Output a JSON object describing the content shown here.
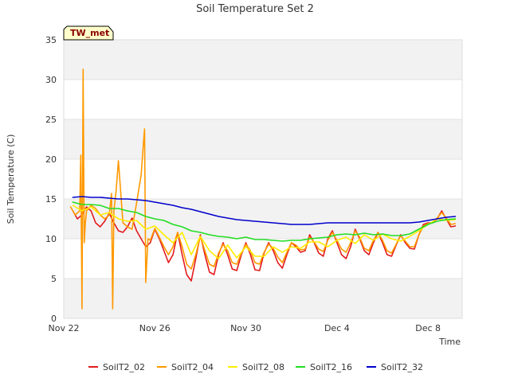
{
  "chart_data": {
    "type": "line",
    "title": "Soil Temperature Set 2",
    "xlabel": "Time",
    "ylabel": "Soil Temperature (C)",
    "station_badge": "TW_met",
    "ylim": [
      0,
      35
    ],
    "yticks": [
      0,
      5,
      10,
      15,
      20,
      25,
      30,
      35
    ],
    "xlim": [
      0,
      17.5
    ],
    "xticks": [
      {
        "value": 0,
        "label": "Nov 22"
      },
      {
        "value": 4,
        "label": "Nov 26"
      },
      {
        "value": 8,
        "label": "Nov 30"
      },
      {
        "value": 12,
        "label": "Dec 4"
      },
      {
        "value": 16,
        "label": "Dec 8"
      }
    ],
    "grid": true,
    "legend_position": "bottom",
    "series": [
      {
        "name": "SoilT2_02",
        "color": "#e31a1c",
        "x": [
          0.4,
          0.6,
          0.8,
          1.0,
          1.2,
          1.4,
          1.6,
          1.8,
          2.0,
          2.2,
          2.4,
          2.6,
          2.8,
          3.0,
          3.2,
          3.4,
          3.6,
          3.8,
          4.0,
          4.2,
          4.4,
          4.6,
          4.8,
          5.0,
          5.2,
          5.4,
          5.6,
          5.8,
          6.0,
          6.2,
          6.4,
          6.6,
          6.8,
          7.0,
          7.2,
          7.4,
          7.6,
          7.8,
          8.0,
          8.2,
          8.4,
          8.6,
          8.8,
          9.0,
          9.2,
          9.4,
          9.6,
          9.8,
          10.0,
          10.2,
          10.4,
          10.6,
          10.8,
          11.0,
          11.2,
          11.4,
          11.6,
          11.8,
          12.0,
          12.2,
          12.4,
          12.6,
          12.8,
          13.0,
          13.2,
          13.4,
          13.6,
          13.8,
          14.0,
          14.2,
          14.4,
          14.6,
          14.8,
          15.0,
          15.2,
          15.4,
          15.6,
          15.8,
          16.0,
          16.2,
          16.4,
          16.6,
          16.8,
          17.0,
          17.2
        ],
        "y": [
          13.5,
          12.5,
          13.0,
          14.0,
          13.5,
          12.0,
          11.5,
          12.2,
          13.2,
          12.0,
          11.0,
          10.8,
          11.5,
          12.6,
          11.0,
          10.0,
          9.0,
          9.5,
          11.2,
          10.0,
          8.5,
          7.0,
          8.0,
          10.8,
          8.0,
          5.5,
          4.7,
          7.5,
          10.5,
          8.0,
          5.8,
          5.5,
          8.0,
          9.5,
          8.0,
          6.2,
          6.0,
          8.0,
          9.5,
          8.0,
          6.1,
          6.0,
          8.2,
          9.5,
          8.5,
          7.0,
          6.3,
          8.0,
          9.5,
          9.0,
          8.3,
          8.5,
          10.5,
          9.5,
          8.2,
          7.8,
          10.0,
          11.0,
          9.5,
          8.0,
          7.5,
          9.0,
          11.2,
          10.0,
          8.5,
          8.0,
          9.5,
          10.8,
          9.5,
          8.0,
          7.8,
          9.2,
          10.5,
          9.5,
          8.8,
          8.7,
          10.5,
          11.8,
          12.0,
          12.0,
          12.5,
          13.5,
          12.5,
          11.5,
          11.6
        ]
      },
      {
        "name": "SoilT2_04",
        "color": "#ff9900",
        "x": [
          0.3,
          0.5,
          0.7,
          0.75,
          0.8,
          0.85,
          0.9,
          0.95,
          1.0,
          1.2,
          1.4,
          1.6,
          1.8,
          2.0,
          2.1,
          2.15,
          2.2,
          2.3,
          2.4,
          2.6,
          2.8,
          3.0,
          3.2,
          3.4,
          3.5,
          3.55,
          3.6,
          3.7,
          3.8,
          4.0,
          4.2,
          4.4,
          4.6,
          4.8,
          5.0,
          5.2,
          5.4,
          5.6,
          5.8,
          6.0,
          6.2,
          6.4,
          6.6,
          6.8,
          7.0,
          7.2,
          7.4,
          7.6,
          7.8,
          8.0,
          8.2,
          8.4,
          8.6,
          8.8,
          9.0,
          9.2,
          9.4,
          9.6,
          9.8,
          10.0,
          10.2,
          10.4,
          10.6,
          10.8,
          11.0,
          11.2,
          11.4,
          11.6,
          11.8,
          12.0,
          12.2,
          12.4,
          12.6,
          12.8,
          13.0,
          13.2,
          13.4,
          13.6,
          13.8,
          14.0,
          14.2,
          14.4,
          14.6,
          14.8,
          15.0,
          15.2,
          15.4,
          15.6,
          15.8,
          16.0,
          16.2,
          16.4,
          16.6,
          16.8,
          17.0,
          17.2
        ],
        "y": [
          14.0,
          13.0,
          13.5,
          20.5,
          1.2,
          31.3,
          9.5,
          12.0,
          13.5,
          14.2,
          13.8,
          13.0,
          12.5,
          13.0,
          15.7,
          1.2,
          13.5,
          16.0,
          19.8,
          12.0,
          11.5,
          11.2,
          14.5,
          18.0,
          22.0,
          23.8,
          4.5,
          10.0,
          9.8,
          11.3,
          10.2,
          9.0,
          8.0,
          9.0,
          10.8,
          9.0,
          6.8,
          6.2,
          8.0,
          10.3,
          8.5,
          6.8,
          6.5,
          8.2,
          9.3,
          8.5,
          7.0,
          6.8,
          8.2,
          9.3,
          8.5,
          7.0,
          6.8,
          8.3,
          9.3,
          8.8,
          7.7,
          7.0,
          8.3,
          9.5,
          9.2,
          8.6,
          8.7,
          10.2,
          9.6,
          8.7,
          8.4,
          9.8,
          10.8,
          9.8,
          8.7,
          8.3,
          9.5,
          11.0,
          10.2,
          8.8,
          8.5,
          9.8,
          10.8,
          9.8,
          8.5,
          8.2,
          9.3,
          10.4,
          9.7,
          9.0,
          9.0,
          10.5,
          11.6,
          11.9,
          12.0,
          12.6,
          13.3,
          12.6,
          11.8,
          11.9
        ]
      },
      {
        "name": "SoilT2_08",
        "color": "#ffee00",
        "x": [
          0.4,
          0.8,
          1.2,
          1.6,
          2.0,
          2.4,
          2.8,
          3.2,
          3.6,
          4.0,
          4.4,
          4.8,
          5.2,
          5.6,
          6.0,
          6.4,
          6.8,
          7.2,
          7.6,
          8.0,
          8.4,
          8.8,
          9.2,
          9.6,
          10.0,
          10.4,
          10.8,
          11.2,
          11.6,
          12.0,
          12.4,
          12.8,
          13.2,
          13.6,
          14.0,
          14.4,
          14.8,
          15.2,
          15.6,
          16.0,
          16.4,
          16.8,
          17.2
        ],
        "y": [
          14.2,
          13.5,
          14.0,
          13.0,
          13.3,
          12.5,
          12.2,
          12.3,
          11.2,
          11.6,
          10.5,
          9.5,
          10.8,
          8.0,
          10.3,
          8.5,
          7.5,
          9.2,
          7.6,
          9.0,
          7.8,
          7.8,
          9.0,
          8.3,
          9.0,
          8.8,
          9.6,
          9.6,
          9.0,
          9.8,
          10.2,
          9.4,
          10.5,
          9.8,
          10.6,
          10.0,
          9.7,
          10.3,
          11.0,
          11.8,
          12.5,
          12.3,
          12.4
        ]
      },
      {
        "name": "SoilT2_16",
        "color": "#22dd22",
        "x": [
          0.4,
          0.8,
          1.2,
          1.6,
          2.0,
          2.4,
          2.8,
          3.2,
          3.6,
          4.0,
          4.4,
          4.8,
          5.2,
          5.6,
          6.0,
          6.4,
          6.8,
          7.2,
          7.6,
          8.0,
          8.4,
          8.8,
          9.2,
          9.6,
          10.0,
          10.4,
          10.8,
          11.2,
          11.6,
          12.0,
          12.4,
          12.8,
          13.2,
          13.6,
          14.0,
          14.4,
          14.8,
          15.2,
          15.6,
          16.0,
          16.4,
          16.8,
          17.2
        ],
        "y": [
          14.6,
          14.3,
          14.3,
          14.2,
          13.8,
          13.8,
          13.5,
          13.3,
          12.8,
          12.5,
          12.3,
          11.8,
          11.5,
          11.0,
          10.8,
          10.5,
          10.3,
          10.2,
          10.0,
          10.2,
          9.9,
          9.9,
          9.8,
          9.7,
          9.8,
          9.8,
          10.0,
          10.1,
          10.2,
          10.5,
          10.6,
          10.5,
          10.7,
          10.5,
          10.6,
          10.4,
          10.4,
          10.6,
          11.2,
          11.8,
          12.2,
          12.4,
          12.5
        ]
      },
      {
        "name": "SoilT2_32",
        "color": "#0000cc",
        "x": [
          0.4,
          0.8,
          1.2,
          1.6,
          2.0,
          2.4,
          2.8,
          3.2,
          3.6,
          4.0,
          4.4,
          4.8,
          5.2,
          5.6,
          6.0,
          6.4,
          6.8,
          7.2,
          7.6,
          8.0,
          8.4,
          8.8,
          9.2,
          9.6,
          10.0,
          10.4,
          10.8,
          11.2,
          11.6,
          12.0,
          12.4,
          12.8,
          13.2,
          13.6,
          14.0,
          14.4,
          14.8,
          15.2,
          15.6,
          16.0,
          16.4,
          16.8,
          17.2
        ],
        "y": [
          15.2,
          15.3,
          15.2,
          15.2,
          15.1,
          15.0,
          15.0,
          14.9,
          14.8,
          14.6,
          14.4,
          14.2,
          13.9,
          13.7,
          13.4,
          13.1,
          12.8,
          12.6,
          12.4,
          12.3,
          12.2,
          12.1,
          12.0,
          11.9,
          11.8,
          11.8,
          11.8,
          11.9,
          12.0,
          12.0,
          12.0,
          12.0,
          12.0,
          12.0,
          12.0,
          12.0,
          12.0,
          12.0,
          12.1,
          12.3,
          12.5,
          12.7,
          12.8
        ]
      }
    ]
  }
}
